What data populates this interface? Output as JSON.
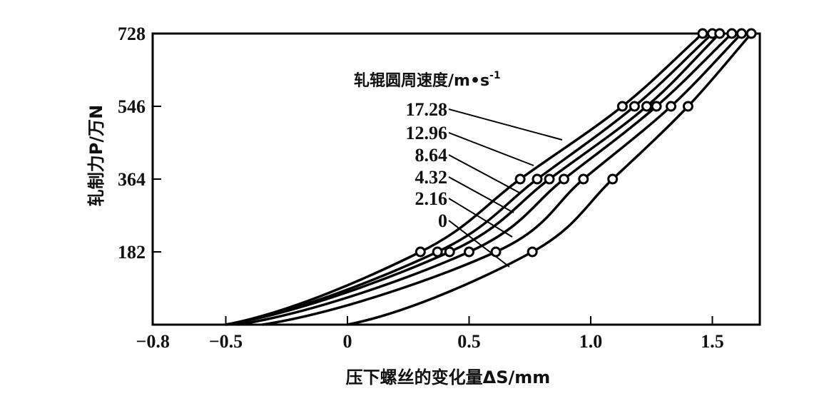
{
  "chart_data": {
    "type": "line",
    "title": "",
    "xlabel": "压下螺丝的变化量ΔS/mm",
    "ylabel": "轧制力P/万N",
    "xlim": [
      -0.8,
      1.7
    ],
    "ylim": [
      0,
      728
    ],
    "x_ticks": [
      -0.8,
      -0.5,
      0,
      0.5,
      1.0,
      1.5
    ],
    "x_tick_labels": [
      "−0.8",
      "−0.5",
      "0",
      "0.5",
      "1.0",
      "1.5"
    ],
    "y_ticks": [
      182,
      364,
      546,
      728
    ],
    "y_tick_labels": [
      "182",
      "364",
      "546",
      "728"
    ],
    "grid": false,
    "legend": {
      "title": "轧辊圆周速度/m•s",
      "title_sup": "-1",
      "position": "inside-upper-left, leader lines to curves"
    },
    "series": [
      {
        "name": "17.28",
        "points": [
          [
            -0.5,
            0
          ],
          [
            0.3,
            182
          ],
          [
            0.71,
            364
          ],
          [
            1.13,
            546
          ],
          [
            1.46,
            728
          ]
        ]
      },
      {
        "name": "12.96",
        "points": [
          [
            -0.5,
            0
          ],
          [
            0.37,
            182
          ],
          [
            0.78,
            364
          ],
          [
            1.18,
            546
          ],
          [
            1.5,
            728
          ]
        ]
      },
      {
        "name": "8.64",
        "points": [
          [
            -0.5,
            0
          ],
          [
            0.42,
            182
          ],
          [
            0.83,
            364
          ],
          [
            1.23,
            546
          ],
          [
            1.53,
            728
          ]
        ]
      },
      {
        "name": "4.32",
        "points": [
          [
            -0.45,
            0
          ],
          [
            0.5,
            182
          ],
          [
            0.89,
            364
          ],
          [
            1.27,
            546
          ],
          [
            1.58,
            728
          ]
        ]
      },
      {
        "name": "2.16",
        "points": [
          [
            -0.35,
            0
          ],
          [
            0.61,
            182
          ],
          [
            0.97,
            364
          ],
          [
            1.33,
            546
          ],
          [
            1.62,
            728
          ]
        ]
      },
      {
        "name": "0",
        "points": [
          [
            0.0,
            0
          ],
          [
            0.76,
            182
          ],
          [
            1.09,
            364
          ],
          [
            1.4,
            546
          ],
          [
            1.66,
            728
          ]
        ]
      }
    ],
    "marker": "open-circle",
    "line_color": "#000000"
  },
  "axis": {
    "x_title": "压下螺丝的变化量ΔS/mm",
    "y_title": "轧制力P/万N"
  },
  "legend_title_main": "轧辊圆周速度/m•s",
  "legend_title_sup": "-1"
}
